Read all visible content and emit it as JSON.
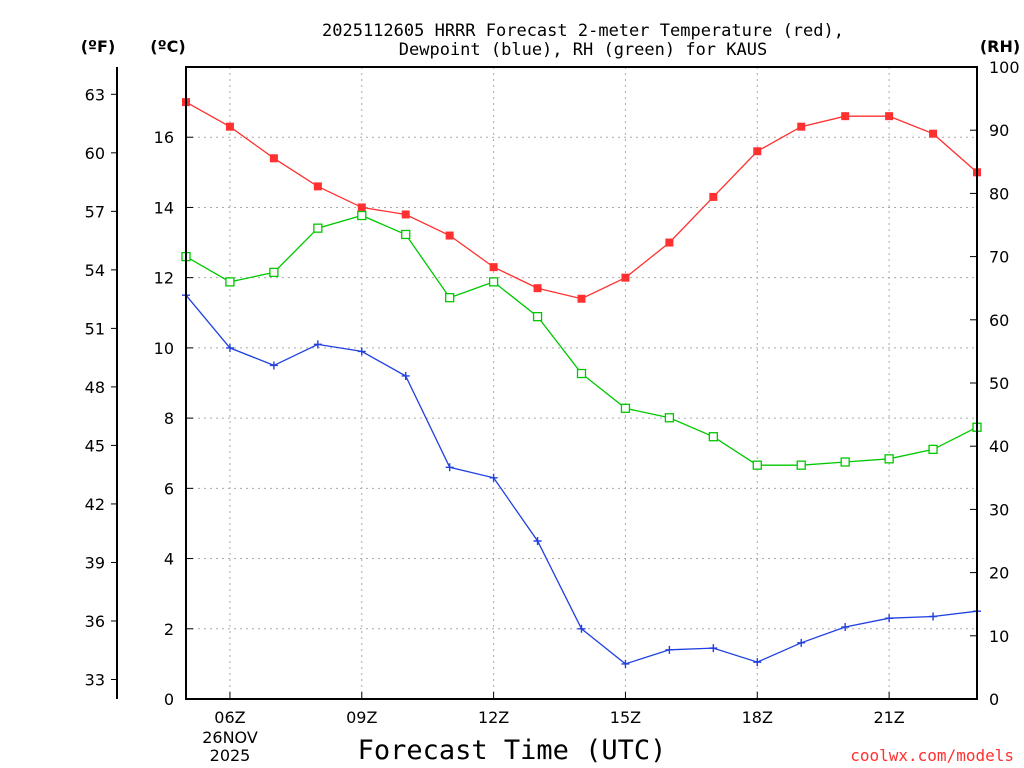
{
  "chart_data": {
    "type": "line",
    "title_line1": "2025112605 HRRR Forecast 2-meter Temperature (red),",
    "title_line2": "Dewpoint (blue), RH (green) for KAUS",
    "xlabel": "Forecast Time (UTC)",
    "credit": "coolwx.com/models",
    "unit_f": "(ºF)",
    "unit_c": "(ºC)",
    "unit_rh": "(RH)",
    "x_hours": [
      5,
      6,
      7,
      8,
      9,
      10,
      11,
      12,
      13,
      14,
      15,
      16,
      17,
      18,
      19,
      20,
      21,
      22,
      23
    ],
    "xlim": [
      5,
      23
    ],
    "x_ticks": [
      {
        "hour": 6,
        "label": "06Z"
      },
      {
        "hour": 9,
        "label": "09Z"
      },
      {
        "hour": 12,
        "label": "12Z"
      },
      {
        "hour": 15,
        "label": "15Z"
      },
      {
        "hour": 18,
        "label": "18Z"
      },
      {
        "hour": 21,
        "label": "21Z"
      }
    ],
    "date_line1": "26NOV",
    "date_line2": "2025",
    "celsius_axis": {
      "range": [
        0,
        18
      ],
      "ticks": [
        0,
        2,
        4,
        6,
        8,
        10,
        12,
        14,
        16
      ]
    },
    "fahrenheit_axis": {
      "range": [
        32,
        64.4
      ],
      "ticks": [
        33,
        36,
        39,
        42,
        45,
        48,
        51,
        54,
        57,
        60,
        63
      ]
    },
    "rh_axis": {
      "range": [
        0,
        100
      ],
      "ticks": [
        0,
        10,
        20,
        30,
        40,
        50,
        60,
        70,
        80,
        90,
        100
      ]
    },
    "series": [
      {
        "name": "Temperature",
        "color": "#ff3030",
        "marker": "filled-square",
        "axis": "C",
        "values": [
          17.0,
          16.3,
          15.4,
          14.6,
          14.0,
          13.8,
          13.2,
          12.3,
          11.7,
          11.4,
          12.0,
          13.0,
          14.3,
          15.6,
          16.3,
          16.6,
          16.6,
          16.1,
          15.0
        ]
      },
      {
        "name": "Dewpoint",
        "color": "#2040e0",
        "marker": "plus",
        "axis": "C",
        "values": [
          11.5,
          10.0,
          9.5,
          10.1,
          9.9,
          9.2,
          6.6,
          6.3,
          4.5,
          2.0,
          1.0,
          1.4,
          1.45,
          1.05,
          1.6,
          2.05,
          2.3,
          2.35,
          2.5
        ]
      },
      {
        "name": "RH",
        "color": "#00c800",
        "marker": "open-square",
        "axis": "RH",
        "values": [
          70,
          66,
          67.5,
          74.5,
          76.5,
          73.5,
          63.5,
          66,
          60.5,
          51.5,
          46,
          44.5,
          41.5,
          37,
          37,
          37.5,
          38,
          39.5,
          43
        ]
      }
    ]
  }
}
